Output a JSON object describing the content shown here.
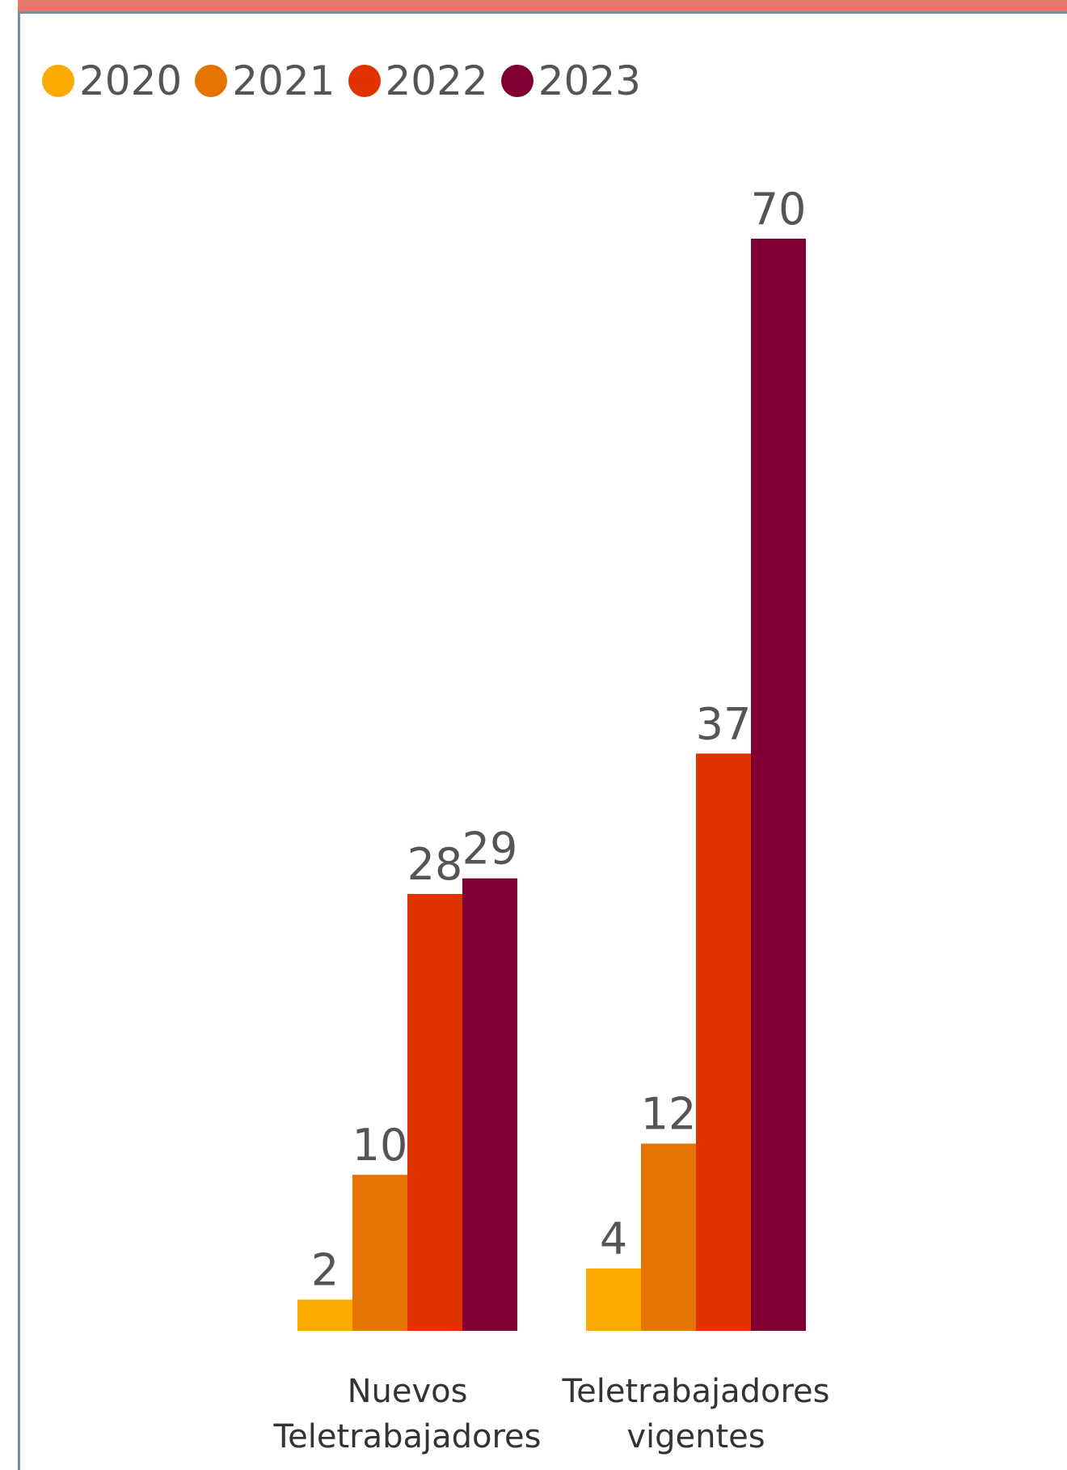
{
  "colors": {
    "2020": "#fdaa00",
    "2021": "#e57300",
    "2022": "#e03300",
    "2023": "#800033",
    "frame_accent": "#e8776b",
    "frame_rule": "#7b8aa3"
  },
  "chart_data": {
    "type": "bar",
    "categories": [
      [
        "Nuevos",
        "Teletrabajadores"
      ],
      [
        "Teletrabajadores",
        "vigentes"
      ]
    ],
    "series": [
      {
        "name": "2020",
        "values": [
          2,
          4
        ]
      },
      {
        "name": "2021",
        "values": [
          10,
          12
        ]
      },
      {
        "name": "2022",
        "values": [
          28,
          37
        ]
      },
      {
        "name": "2023",
        "values": [
          29,
          70
        ]
      }
    ],
    "title": "",
    "xlabel": "",
    "ylabel": "",
    "ylim": [
      0,
      70
    ],
    "grid": false,
    "legend": "top-left",
    "data_labels": true
  }
}
